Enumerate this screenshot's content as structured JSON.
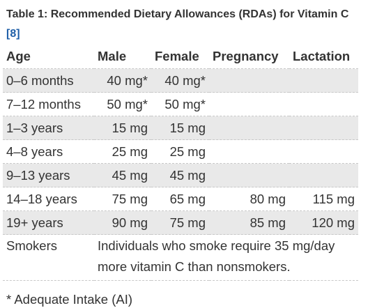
{
  "caption": {
    "text": "Table 1: Recommended Dietary Allowances (RDAs) for Vitamin C",
    "ref": "[8]"
  },
  "table": {
    "headers": [
      "Age",
      "Male",
      "Female",
      "Pregnancy",
      "Lactation"
    ],
    "rows": [
      {
        "age": "0–6 months",
        "male": "40 mg*",
        "female": "40 mg*",
        "pregnancy": "",
        "lactation": ""
      },
      {
        "age": "7–12 months",
        "male": "50 mg*",
        "female": "50 mg*",
        "pregnancy": "",
        "lactation": ""
      },
      {
        "age": "1–3 years",
        "male": "15 mg",
        "female": "15 mg",
        "pregnancy": "",
        "lactation": ""
      },
      {
        "age": "4–8 years",
        "male": "25 mg",
        "female": "25 mg",
        "pregnancy": "",
        "lactation": ""
      },
      {
        "age": "9–13 years",
        "male": "45 mg",
        "female": "45 mg",
        "pregnancy": "",
        "lactation": ""
      },
      {
        "age": "14–18 years",
        "male": "75 mg",
        "female": "65 mg",
        "pregnancy": "80 mg",
        "lactation": "115 mg"
      },
      {
        "age": "19+ years",
        "male": "90 mg",
        "female": "75 mg",
        "pregnancy": "85 mg",
        "lactation": "120 mg"
      }
    ],
    "smokers": {
      "label": "Smokers",
      "note": "Individuals who smoke require 35 mg/day more vitamin C than nonsmokers."
    }
  },
  "footnote": "* Adequate Intake (AI)",
  "colors": {
    "text": "#333333",
    "link": "#1f5fa8",
    "row_shade": "#e9e9e9",
    "divider": "#c8c8c8"
  }
}
